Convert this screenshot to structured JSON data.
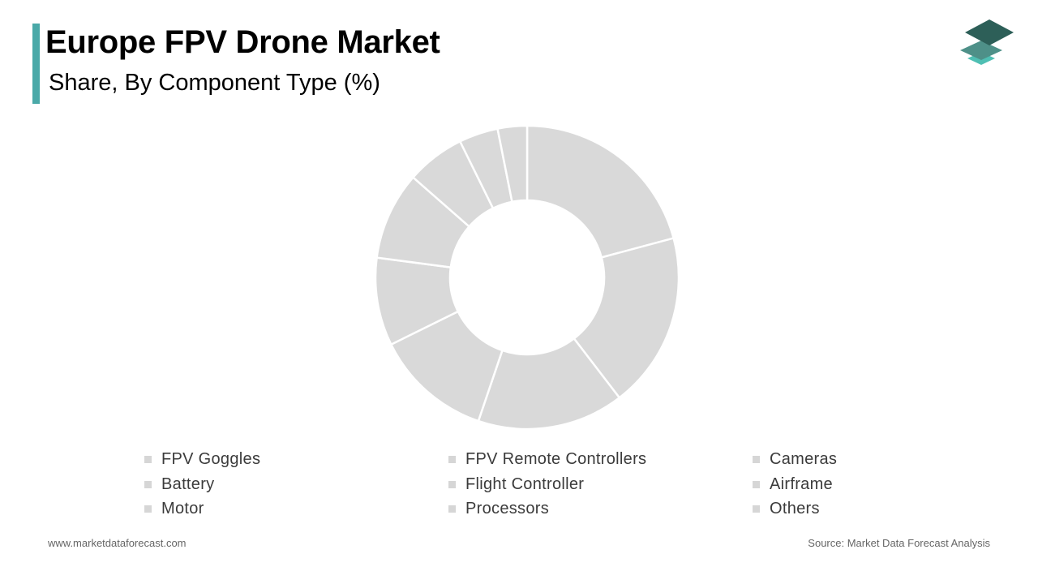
{
  "header": {
    "title": "Europe FPV Drone Market",
    "subtitle": "Share, By Component Type (%)"
  },
  "colors": {
    "accent": "#4aa9a8",
    "slice": "#d9d9d9",
    "logo_top": "#2d5f58",
    "logo_mid": "#4e9088",
    "logo_bottom": "#4fbfb3"
  },
  "icons": {
    "logo": "stacked-layers-icon"
  },
  "chart_data": {
    "type": "pie",
    "donut": true,
    "categories": [
      "FPV Goggles",
      "FPV Remote Controllers",
      "Cameras",
      "Battery",
      "Flight Controller",
      "Airframe",
      "Motor",
      "Processors",
      "Others"
    ],
    "values": [
      20,
      18,
      15,
      12,
      9,
      9,
      6,
      4,
      3
    ],
    "legend_position": "bottom"
  },
  "footer": {
    "website": "www.marketdataforecast.com",
    "source": "Source: Market Data Forecast Analysis"
  }
}
